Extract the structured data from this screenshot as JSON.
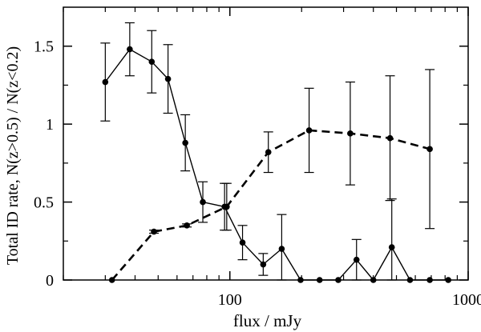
{
  "chart_data": {
    "type": "line",
    "title": "",
    "xlabel": "flux / mJy",
    "ylabel": "Total ID rate,   N(z>0.5) / N(z<0.2)",
    "x_scale": "log",
    "xlim": [
      20,
      1000
    ],
    "ylim": [
      0,
      1.75
    ],
    "grid": false,
    "legend": "none",
    "x_ticks": [
      {
        "value": 100,
        "label": "100"
      },
      {
        "value": 1000,
        "label": "1000"
      }
    ],
    "y_ticks": [
      {
        "value": 0,
        "label": "0"
      },
      {
        "value": 0.5,
        "label": "0.5"
      },
      {
        "value": 1,
        "label": "1"
      },
      {
        "value": 1.5,
        "label": "1.5"
      }
    ],
    "series": [
      {
        "style": "solid",
        "color": "#000000",
        "points": [
          {
            "x": 30,
            "y": 1.27,
            "err": 0.25
          },
          {
            "x": 38,
            "y": 1.48,
            "err": 0.17
          },
          {
            "x": 47,
            "y": 1.4,
            "err": 0.2
          },
          {
            "x": 55,
            "y": 1.29,
            "err": 0.22
          },
          {
            "x": 65,
            "y": 0.88,
            "err": 0.18
          },
          {
            "x": 77,
            "y": 0.5,
            "err": 0.13
          },
          {
            "x": 95,
            "y": 0.47,
            "err": 0.15
          },
          {
            "x": 113,
            "y": 0.24,
            "err": 0.11
          },
          {
            "x": 138,
            "y": 0.1,
            "err": 0.07
          },
          {
            "x": 165,
            "y": 0.2,
            "err": 0.22
          },
          {
            "x": 198,
            "y": 0.0,
            "err": 0
          },
          {
            "x": 238,
            "y": 0.0,
            "err": 0
          },
          {
            "x": 285,
            "y": 0.0,
            "err": 0
          },
          {
            "x": 340,
            "y": 0.13,
            "err": 0.13
          },
          {
            "x": 400,
            "y": 0.0,
            "err": 0
          },
          {
            "x": 478,
            "y": 0.21,
            "err": 0.31
          },
          {
            "x": 570,
            "y": 0.0,
            "err": 0
          },
          {
            "x": 690,
            "y": 0.0,
            "err": 0
          },
          {
            "x": 825,
            "y": 0.0,
            "err": 0
          }
        ]
      },
      {
        "style": "dashed",
        "color": "#000000",
        "points": [
          {
            "x": 32,
            "y": 0.0,
            "err": 0
          },
          {
            "x": 48,
            "y": 0.31,
            "err": 0.01
          },
          {
            "x": 66,
            "y": 0.35,
            "err": 0.01
          },
          {
            "x": 97,
            "y": 0.47,
            "err": 0.15
          },
          {
            "x": 145,
            "y": 0.82,
            "err": 0.13
          },
          {
            "x": 215,
            "y": 0.96,
            "err": 0.27
          },
          {
            "x": 320,
            "y": 0.94,
            "err": 0.33
          },
          {
            "x": 470,
            "y": 0.91,
            "err": 0.4
          },
          {
            "x": 690,
            "y": 0.84,
            "err": 0.51
          }
        ]
      }
    ]
  }
}
